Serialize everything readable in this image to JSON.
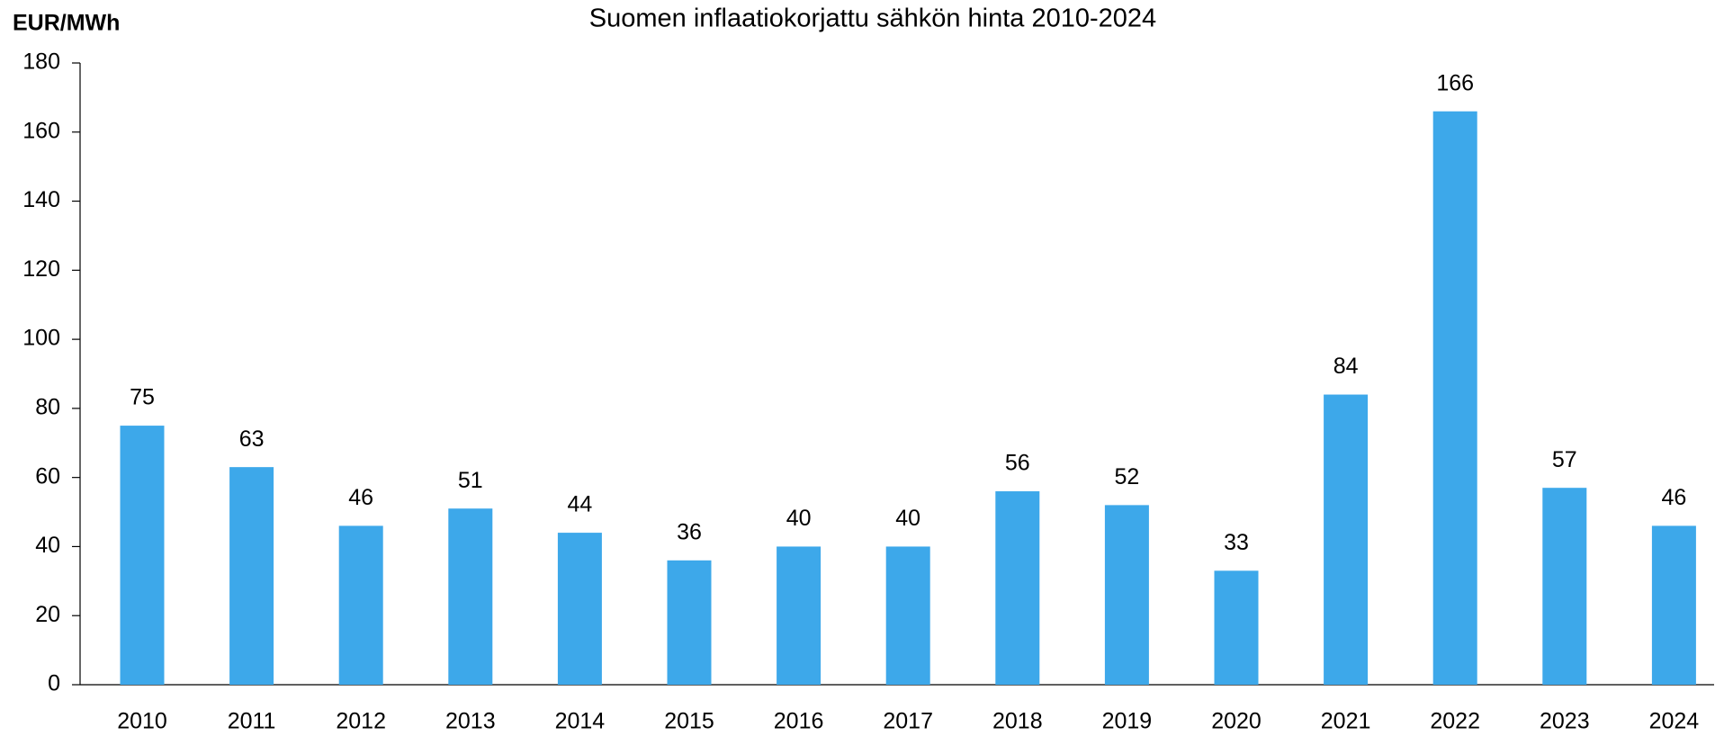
{
  "chart_data": {
    "type": "bar",
    "title": "Suomen inflaatiokorjattu sähkön hinta 2010-2024",
    "y_label": "EUR/MWh",
    "categories": [
      "2010",
      "2011",
      "2012",
      "2013",
      "2014",
      "2015",
      "2016",
      "2017",
      "2018",
      "2019",
      "2020",
      "2021",
      "2022",
      "2023",
      "2024"
    ],
    "values": [
      75,
      63,
      46,
      51,
      44,
      36,
      40,
      40,
      56,
      52,
      33,
      84,
      166,
      57,
      46
    ],
    "color": "#3da8ea",
    "ylim": [
      0,
      180
    ],
    "yticks": [
      0,
      20,
      40,
      60,
      80,
      100,
      120,
      140,
      160,
      180
    ],
    "grid": false
  }
}
